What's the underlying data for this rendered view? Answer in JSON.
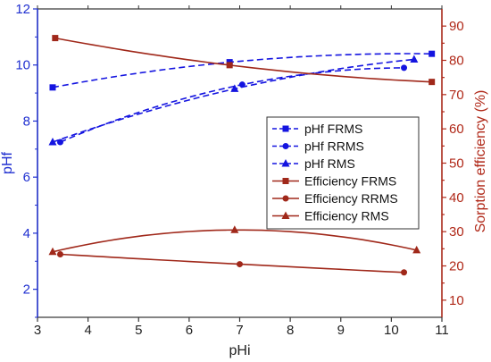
{
  "chart_data": {
    "type": "line",
    "xlabel": "pHi",
    "ylabel_left": "pHf",
    "ylabel_right": "Sorption efficiency (%)",
    "xlim": [
      3,
      11
    ],
    "ylim_left": [
      1,
      12
    ],
    "ylim_right": [
      5,
      95
    ],
    "xticks": [
      3,
      4,
      5,
      6,
      7,
      8,
      9,
      10,
      11
    ],
    "yticks_left": [
      2,
      4,
      6,
      8,
      10,
      12
    ],
    "yticks_right": [
      10,
      15,
      20,
      25,
      30,
      35,
      40,
      45,
      50,
      55,
      60,
      65,
      70,
      75,
      80,
      85,
      90
    ],
    "grid": false,
    "legend_position": "center-right",
    "colors": {
      "left_axis": "#1f2fd0",
      "right_axis": "#b02818",
      "blue": "#1414e0",
      "red": "#a0281a"
    },
    "series": [
      {
        "name": "pHf FRMS",
        "axis": "left",
        "marker": "square",
        "line": "dashed",
        "x": [
          3.3,
          6.8,
          10.8
        ],
        "y": [
          9.2,
          10.1,
          10.4
        ]
      },
      {
        "name": "pHf RRMS",
        "axis": "left",
        "marker": "circle",
        "line": "dashed",
        "x": [
          3.45,
          7.05,
          10.25
        ],
        "y": [
          7.25,
          9.3,
          9.9
        ]
      },
      {
        "name": "pHf RMS",
        "axis": "left",
        "marker": "triangle",
        "line": "dashed",
        "x": [
          3.3,
          6.9,
          10.45
        ],
        "y": [
          7.25,
          9.15,
          10.2
        ]
      },
      {
        "name": "Efficiency FRMS",
        "axis": "right",
        "marker": "square",
        "line": "solid",
        "x": [
          3.35,
          6.8,
          10.8
        ],
        "y": [
          86.5,
          78.6,
          73.7
        ]
      },
      {
        "name": "Efficiency RRMS",
        "axis": "right",
        "marker": "circle",
        "line": "solid",
        "x": [
          3.45,
          7.0,
          10.25
        ],
        "y": [
          23.4,
          20.5,
          18.1
        ]
      },
      {
        "name": "Efficiency RMS",
        "axis": "right",
        "marker": "triangle",
        "line": "solid",
        "x": [
          3.3,
          6.9,
          10.5
        ],
        "y": [
          24.1,
          30.5,
          24.6
        ]
      }
    ]
  }
}
